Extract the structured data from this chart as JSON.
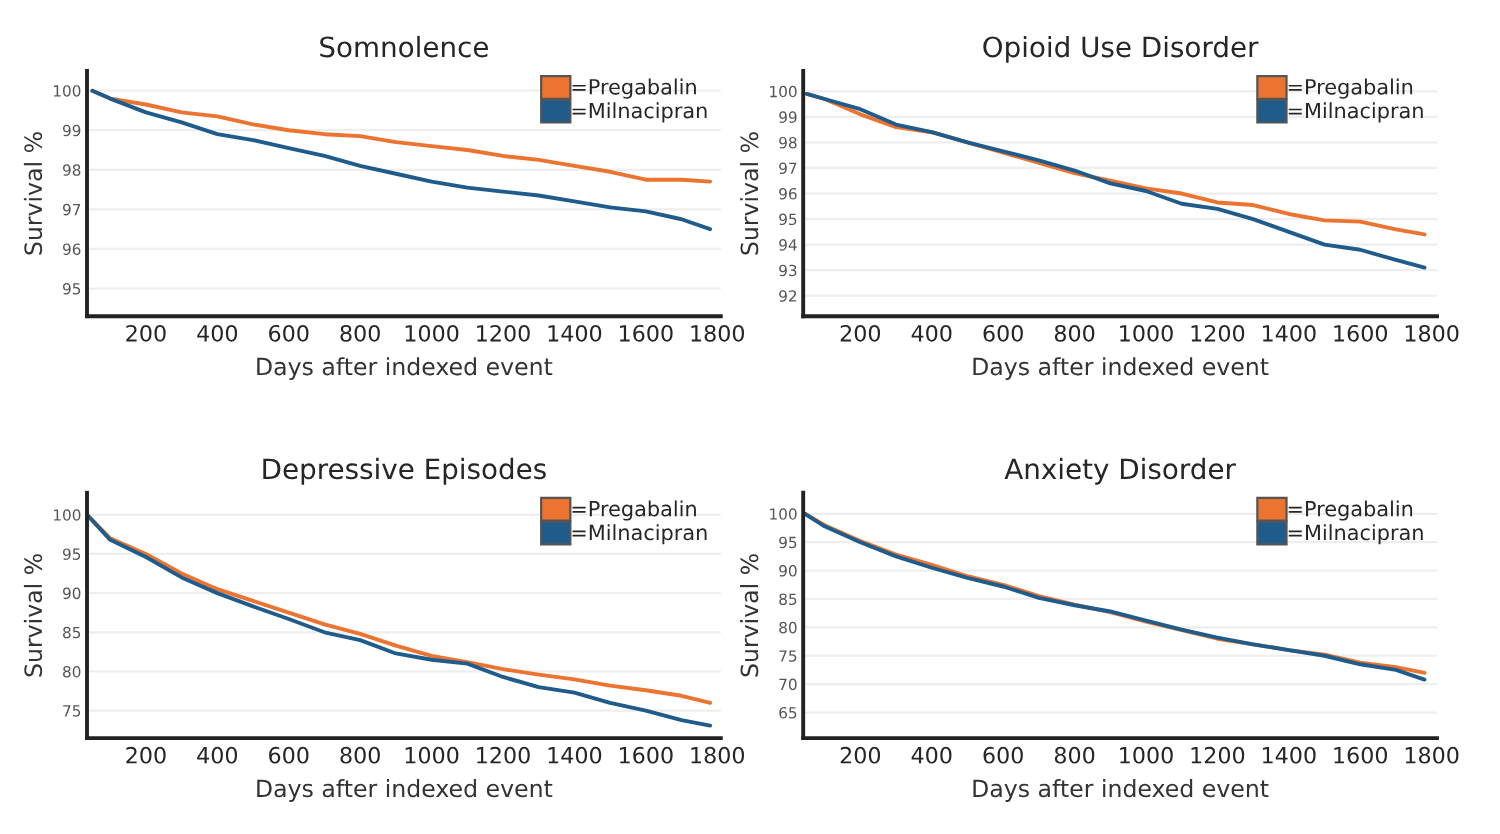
{
  "chart_data": [
    {
      "type": "line",
      "title": "Somnolence",
      "xlabel": "Days after indexed event",
      "ylabel": "Survival %",
      "xlim": [
        35,
        1810
      ],
      "xticks": [
        200,
        400,
        600,
        800,
        1000,
        1200,
        1400,
        1600,
        1800
      ],
      "ylim": [
        94.3,
        100.5
      ],
      "yticks": [
        95,
        96,
        97,
        98,
        99,
        100
      ],
      "grid": "y",
      "legend": "top right",
      "line_style": "solid",
      "x": [
        50,
        100,
        200,
        300,
        400,
        500,
        600,
        700,
        800,
        900,
        1000,
        1100,
        1200,
        1300,
        1400,
        1500,
        1600,
        1700,
        1780
      ],
      "series": [
        {
          "name": "=Pregabalin",
          "color": "#ec7430",
          "values": [
            100,
            99.8,
            99.65,
            99.45,
            99.35,
            99.15,
            99.0,
            98.9,
            98.85,
            98.7,
            98.6,
            98.5,
            98.35,
            98.25,
            98.1,
            97.95,
            97.75,
            97.75,
            97.7
          ]
        },
        {
          "name": "=Milnacipran",
          "color": "#1f5c8c",
          "values": [
            100,
            99.8,
            99.45,
            99.2,
            98.9,
            98.75,
            98.55,
            98.35,
            98.1,
            97.9,
            97.7,
            97.55,
            97.45,
            97.35,
            97.2,
            97.05,
            96.95,
            96.75,
            96.5
          ]
        }
      ]
    },
    {
      "type": "line",
      "title": "Opioid Use Disorder",
      "xlabel": "Days after indexed event",
      "ylabel": "Survival %",
      "xlim": [
        40,
        1815
      ],
      "xticks": [
        200,
        400,
        600,
        800,
        1000,
        1200,
        1400,
        1600,
        1800
      ],
      "ylim": [
        91.2,
        100.8
      ],
      "yticks": [
        92,
        93,
        94,
        95,
        96,
        97,
        98,
        99,
        100
      ],
      "grid": "y",
      "legend": "top right",
      "line_style": "solid",
      "x": [
        50,
        100,
        200,
        300,
        400,
        500,
        600,
        700,
        800,
        900,
        1000,
        1100,
        1200,
        1300,
        1400,
        1500,
        1600,
        1700,
        1780
      ],
      "series": [
        {
          "name": "=Pregabalin",
          "color": "#ec7430",
          "values": [
            99.9,
            99.7,
            99.1,
            98.6,
            98.4,
            98.0,
            97.6,
            97.2,
            96.8,
            96.5,
            96.2,
            96.0,
            95.65,
            95.55,
            95.2,
            94.95,
            94.9,
            94.6,
            94.4
          ]
        },
        {
          "name": "=Milnacipran",
          "color": "#1f5c8c",
          "values": [
            99.9,
            99.7,
            99.3,
            98.7,
            98.4,
            98.0,
            97.65,
            97.3,
            96.9,
            96.4,
            96.1,
            95.6,
            95.4,
            95.0,
            94.5,
            94.0,
            93.8,
            93.4,
            93.1
          ]
        }
      ]
    },
    {
      "type": "line",
      "title": "Depressive Episodes",
      "xlabel": "Days after indexed event",
      "ylabel": "Survival %",
      "xlim": [
        35,
        1810
      ],
      "xticks": [
        200,
        400,
        600,
        800,
        1000,
        1200,
        1400,
        1600,
        1800
      ],
      "ylim": [
        71.5,
        102.8
      ],
      "yticks": [
        75,
        80,
        85,
        90,
        95,
        100
      ],
      "grid": "y",
      "legend": "top right",
      "line_style": "solid",
      "x": [
        35,
        100,
        200,
        300,
        400,
        500,
        600,
        700,
        800,
        900,
        1000,
        1100,
        1200,
        1300,
        1400,
        1500,
        1600,
        1700,
        1780
      ],
      "series": [
        {
          "name": "=Pregabalin",
          "color": "#ec7430",
          "values": [
            100,
            97,
            95,
            92.5,
            90.5,
            89,
            87.5,
            86,
            84.8,
            83.3,
            82,
            81.2,
            80.3,
            79.6,
            79,
            78.2,
            77.6,
            76.9,
            76
          ]
        },
        {
          "name": "=Milnacipran",
          "color": "#1f5c8c",
          "values": [
            100,
            96.8,
            94.6,
            92,
            90,
            88.3,
            86.7,
            85,
            84,
            82.3,
            81.5,
            81,
            79.3,
            78,
            77.3,
            76,
            75,
            73.8,
            73.1
          ]
        }
      ]
    },
    {
      "type": "line",
      "title": "Anxiety Disorder",
      "xlabel": "Days after indexed event",
      "ylabel": "Survival %",
      "xlim": [
        40,
        1815
      ],
      "xticks": [
        200,
        400,
        600,
        800,
        1000,
        1200,
        1400,
        1600,
        1800
      ],
      "ylim": [
        60.5,
        103.7
      ],
      "yticks": [
        65,
        70,
        75,
        80,
        85,
        90,
        95,
        100
      ],
      "grid": "y",
      "legend": "top right",
      "line_style": "solid",
      "x": [
        45,
        100,
        200,
        300,
        400,
        500,
        600,
        700,
        800,
        900,
        1000,
        1100,
        1200,
        1300,
        1400,
        1500,
        1600,
        1700,
        1780
      ],
      "series": [
        {
          "name": "=Pregabalin",
          "color": "#ec7430",
          "values": [
            100,
            98,
            95.2,
            92.8,
            91,
            89,
            87.5,
            85.5,
            84,
            82.7,
            81,
            79.5,
            78,
            77,
            76,
            75.2,
            73.8,
            73,
            72
          ]
        },
        {
          "name": "=Milnacipran",
          "color": "#1f5c8c",
          "values": [
            100,
            97.8,
            95,
            92.5,
            90.5,
            88.7,
            87.2,
            85.2,
            83.9,
            82.8,
            81.2,
            79.6,
            78.2,
            77,
            76,
            75,
            73.5,
            72.5,
            70.8
          ]
        }
      ]
    }
  ]
}
